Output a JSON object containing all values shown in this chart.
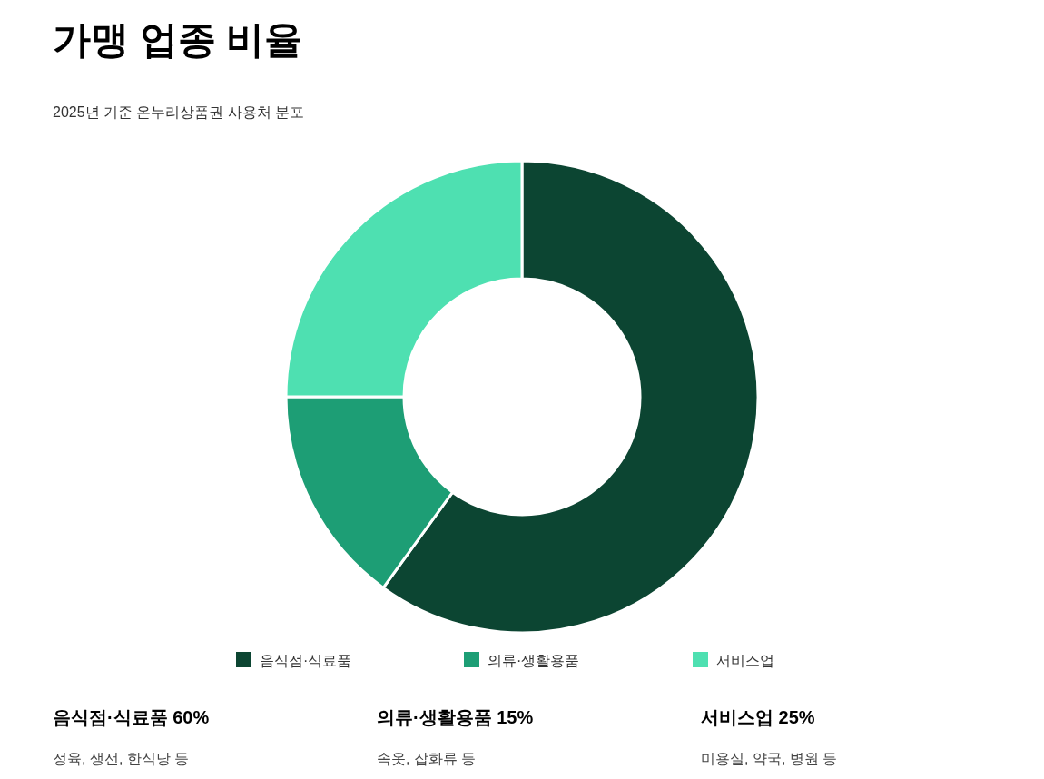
{
  "chart_data": {
    "type": "donut",
    "title": "가맹 업종 비율",
    "subtitle": "2025년 기준 온누리상품권 사용처 분포",
    "categories": [
      "음식점·식료품",
      "의류·생활용품",
      "서비스업"
    ],
    "values": [
      60,
      15,
      25
    ],
    "colors": [
      "#0c4532",
      "#1d9e75",
      "#4ee0b1"
    ],
    "legend": "bottom",
    "annotations": [
      "음식점·식료품 60%",
      "정육, 생선, 한식당 등",
      "의류·생활용품 15%",
      "속옷, 잡화류 등",
      "서비스업 25%",
      "미용실, 약국, 병원 등"
    ]
  }
}
